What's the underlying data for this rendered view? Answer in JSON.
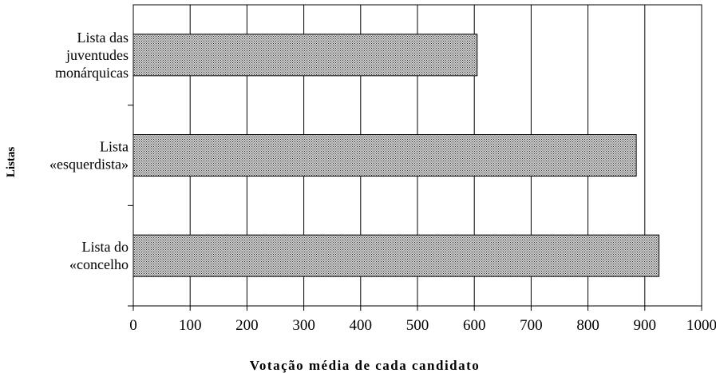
{
  "chart_data": {
    "type": "bar",
    "orientation": "horizontal",
    "categories": [
      [
        "Lista das",
        "juventudes",
        "monárquicas"
      ],
      [
        "Lista",
        "«esquerdista»"
      ],
      [
        "Lista do",
        "«concelho"
      ]
    ],
    "values": [
      605,
      885,
      925
    ],
    "xlabel": "Votação média de cada candidato",
    "ylabel": "Listas",
    "xlim": [
      0,
      1000
    ],
    "xticks": [
      "0",
      "100",
      "200",
      "300",
      "400",
      "500",
      "600",
      "700",
      "800",
      "900",
      "1000"
    ],
    "grid": "vertical",
    "bar_fill": "crosshatch-gray"
  }
}
